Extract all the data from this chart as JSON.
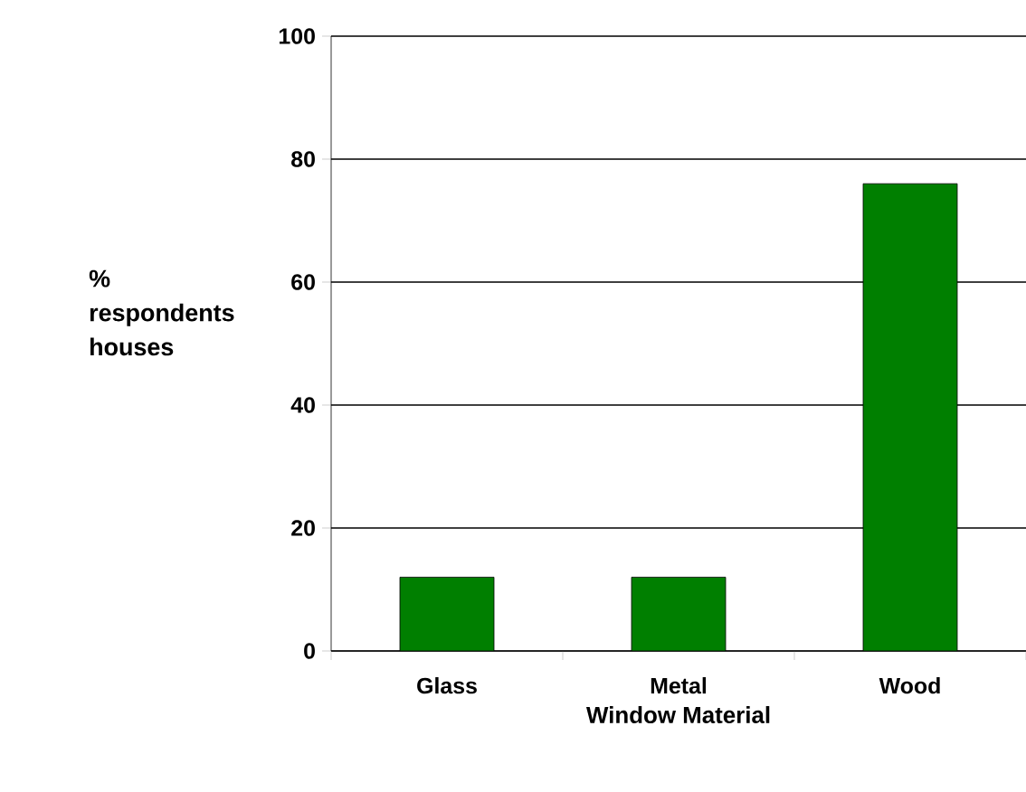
{
  "chart_data": {
    "type": "bar",
    "xlabel": "Window Material",
    "ylabel": "% respondents houses",
    "categories": [
      "Glass",
      "Metal",
      "Wood"
    ],
    "values": [
      12,
      12,
      76
    ],
    "color": "#007f00",
    "ylim": [
      0,
      100
    ],
    "yticks": [
      0,
      20,
      40,
      60,
      80,
      100
    ],
    "grid": "y"
  }
}
